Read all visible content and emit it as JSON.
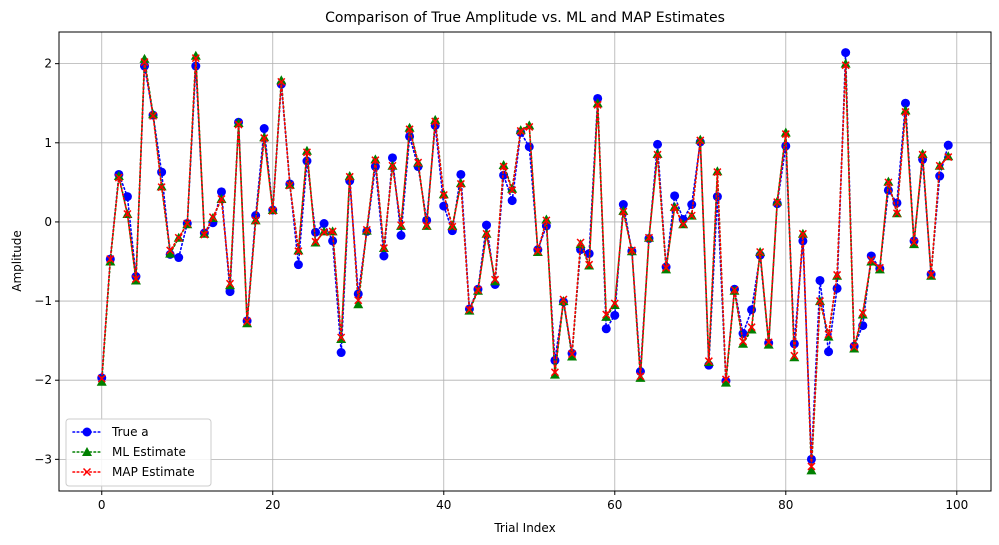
{
  "chart_data": {
    "type": "line",
    "title": "Comparison of True Amplitude vs. ML and MAP Estimates",
    "xlabel": "Trial Index",
    "ylabel": "Amplitude",
    "xlim": [
      -5,
      104
    ],
    "ylim": [
      -3.4,
      2.4
    ],
    "xticks": [
      0,
      20,
      40,
      60,
      80,
      100
    ],
    "yticks": [
      -3,
      -2,
      -1,
      0,
      1,
      2
    ],
    "grid": true,
    "legend_position": "lower-left",
    "x": [
      0,
      1,
      2,
      3,
      4,
      5,
      6,
      7,
      8,
      9,
      10,
      11,
      12,
      13,
      14,
      15,
      16,
      17,
      18,
      19,
      20,
      21,
      22,
      23,
      24,
      25,
      26,
      27,
      28,
      29,
      30,
      31,
      32,
      33,
      34,
      35,
      36,
      37,
      38,
      39,
      40,
      41,
      42,
      43,
      44,
      45,
      46,
      47,
      48,
      49,
      50,
      51,
      52,
      53,
      54,
      55,
      56,
      57,
      58,
      59,
      60,
      61,
      62,
      63,
      64,
      65,
      66,
      67,
      68,
      69,
      70,
      71,
      72,
      73,
      74,
      75,
      76,
      77,
      78,
      79,
      80,
      81,
      82,
      83,
      84,
      85,
      86,
      87,
      88,
      89,
      90,
      91,
      92,
      93,
      94,
      95,
      96,
      97,
      98,
      99
    ],
    "series": [
      {
        "name": "True a",
        "color": "#0000ff",
        "marker": "circle",
        "values": [
          -1.97,
          -0.47,
          0.6,
          0.32,
          -0.69,
          1.97,
          1.35,
          0.63,
          -0.41,
          -0.45,
          -0.02,
          1.97,
          -0.14,
          -0.01,
          0.38,
          -0.88,
          1.26,
          -1.25,
          0.08,
          1.18,
          0.15,
          1.74,
          0.48,
          -0.54,
          0.77,
          -0.13,
          -0.02,
          -0.24,
          -1.65,
          0.52,
          -0.91,
          -0.12,
          0.7,
          -0.43,
          0.81,
          -0.17,
          1.08,
          0.7,
          0.02,
          1.22,
          0.2,
          -0.11,
          0.6,
          -1.1,
          -0.85,
          -0.04,
          -0.79,
          0.59,
          0.27,
          1.13,
          0.95,
          -0.35,
          -0.05,
          -1.75,
          -1.01,
          -1.66,
          -0.35,
          -0.4,
          1.56,
          -1.35,
          -1.18,
          0.22,
          -0.37,
          -1.89,
          -0.21,
          0.98,
          -0.57,
          0.33,
          0.03,
          0.22,
          1.01,
          -1.81,
          0.32,
          -2.01,
          -0.85,
          -1.41,
          -1.11,
          -0.42,
          -1.53,
          0.23,
          0.96,
          -1.54,
          -0.24,
          -3.0,
          -0.74,
          -1.64,
          -0.84,
          2.14,
          -1.57,
          -1.31,
          -0.43,
          -0.59,
          0.4,
          0.24,
          1.5,
          -0.24,
          0.79,
          -0.66,
          0.58,
          0.97
        ]
      },
      {
        "name": "ML Estimate",
        "color": "#008000",
        "marker": "triangle",
        "values": [
          -2.02,
          -0.5,
          0.58,
          0.1,
          -0.74,
          2.06,
          1.36,
          0.45,
          -0.4,
          -0.2,
          -0.03,
          2.1,
          -0.15,
          0.05,
          0.29,
          -0.8,
          1.25,
          -1.28,
          0.02,
          1.07,
          0.15,
          1.79,
          0.47,
          -0.36,
          0.9,
          -0.26,
          -0.12,
          -0.12,
          -1.48,
          0.58,
          -1.04,
          -0.11,
          0.79,
          -0.33,
          0.71,
          -0.05,
          1.19,
          0.75,
          -0.05,
          1.29,
          0.35,
          -0.05,
          0.49,
          -1.12,
          -0.87,
          -0.15,
          -0.75,
          0.72,
          0.42,
          1.16,
          1.22,
          -0.38,
          0.03,
          -1.93,
          -1.0,
          -1.7,
          -0.28,
          -0.55,
          1.5,
          -1.2,
          -1.05,
          0.14,
          -0.37,
          -1.97,
          -0.2,
          0.86,
          -0.6,
          0.19,
          -0.03,
          0.08,
          1.04,
          -1.77,
          0.64,
          -2.03,
          -0.87,
          -1.54,
          -1.36,
          -0.38,
          -1.55,
          0.26,
          1.13,
          -1.71,
          -0.15,
          -3.14,
          -1.0,
          -1.45,
          -0.68,
          2.0,
          -1.6,
          -1.17,
          -0.5,
          -0.6,
          0.51,
          0.11,
          1.41,
          -0.28,
          0.86,
          -0.68,
          0.71,
          0.83
        ]
      },
      {
        "name": "MAP Estimate",
        "color": "#ff0000",
        "marker": "x",
        "values": [
          -1.98,
          -0.47,
          0.56,
          0.1,
          -0.72,
          2.02,
          1.34,
          0.44,
          -0.36,
          -0.2,
          -0.02,
          2.07,
          -0.16,
          0.06,
          0.29,
          -0.78,
          1.23,
          -1.26,
          0.02,
          1.06,
          0.14,
          1.77,
          0.46,
          -0.37,
          0.88,
          -0.25,
          -0.13,
          -0.12,
          -1.46,
          0.57,
          -0.99,
          -0.1,
          0.78,
          -0.33,
          0.71,
          -0.04,
          1.17,
          0.75,
          -0.05,
          1.27,
          0.34,
          -0.06,
          0.48,
          -1.11,
          -0.86,
          -0.15,
          -0.73,
          0.7,
          0.4,
          1.15,
          1.2,
          -0.37,
          0.02,
          -1.9,
          -0.98,
          -1.67,
          -0.26,
          -0.54,
          1.48,
          -1.17,
          -1.03,
          0.13,
          -0.36,
          -1.95,
          -0.2,
          0.85,
          -0.58,
          0.18,
          -0.03,
          0.08,
          1.03,
          -1.76,
          0.63,
          -1.99,
          -0.86,
          -1.51,
          -1.33,
          -0.38,
          -1.52,
          0.25,
          1.11,
          -1.69,
          -0.15,
          -3.09,
          -1.0,
          -1.42,
          -0.67,
          1.98,
          -1.58,
          -1.15,
          -0.48,
          -0.58,
          0.5,
          0.11,
          1.39,
          -0.26,
          0.85,
          -0.67,
          0.71,
          0.82
        ]
      }
    ]
  }
}
